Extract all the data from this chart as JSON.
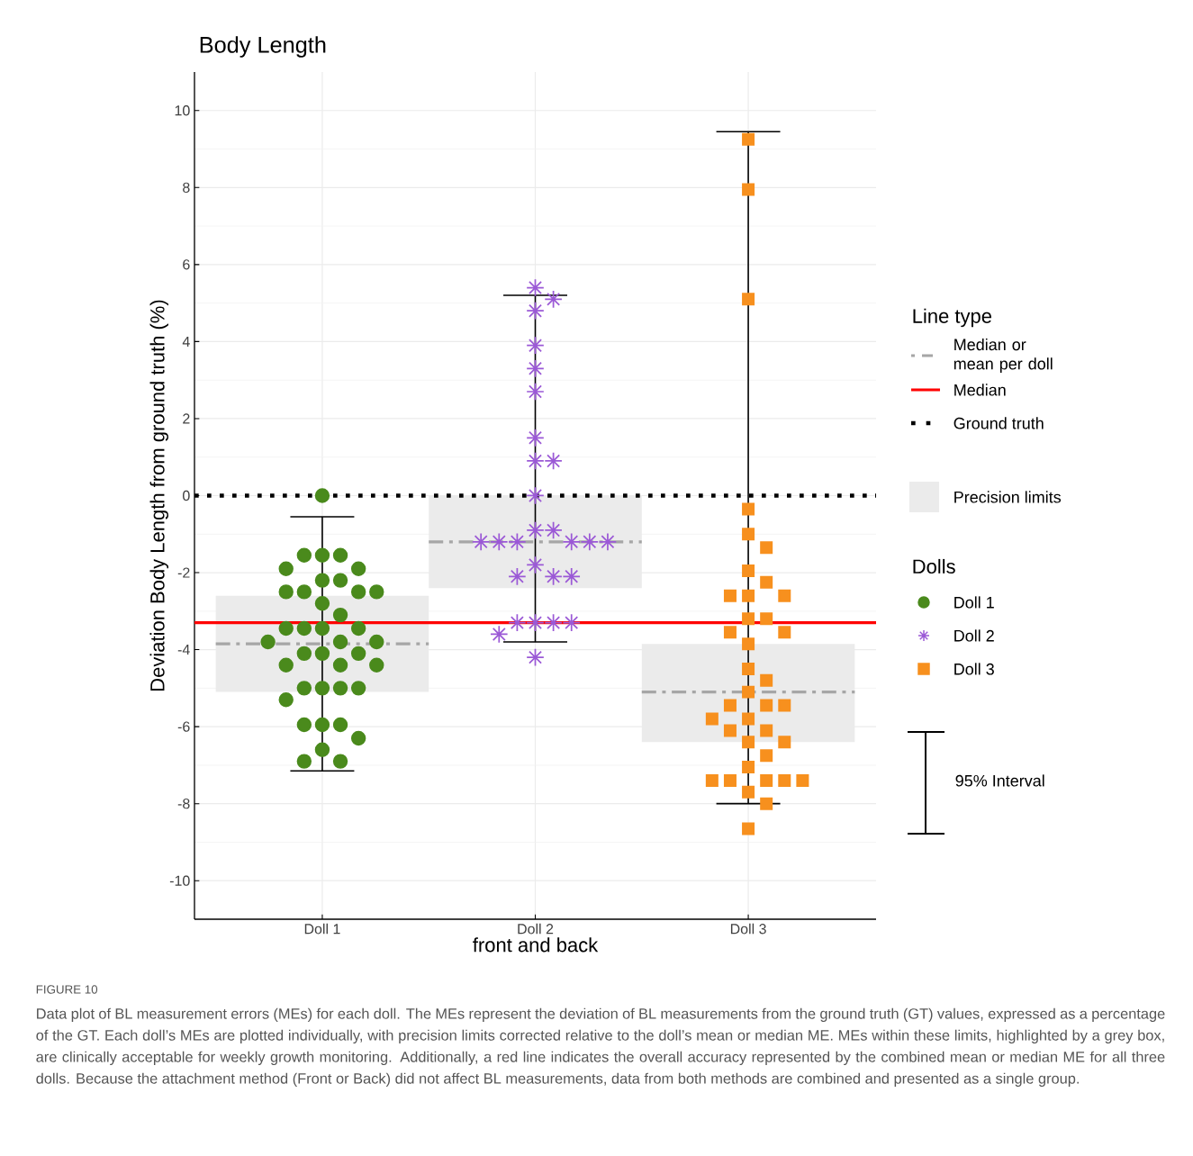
{
  "chart_data": {
    "type": "scatter",
    "title": "Body Length",
    "xlabel": "front and back",
    "ylabel": "Deviation Body Length from ground truth (%)",
    "categories": [
      "Doll 1",
      "Doll 2",
      "Doll 3"
    ],
    "ylim": [
      -11,
      11
    ],
    "yticks": [
      -10,
      -8,
      -6,
      -4,
      -2,
      0,
      2,
      4,
      6,
      8,
      10
    ],
    "grid": true,
    "legend": "right",
    "legend_title": "Line type",
    "series": [
      {
        "name": "Precision limits",
        "type": "box",
        "color": "#ebebeb",
        "boxes": [
          {
            "low": -7.15,
            "q1": -5.1,
            "median": -3.85,
            "q3": -2.6,
            "high": -0.55
          },
          {
            "low": -3.8,
            "q1": -2.4,
            "median": -1.2,
            "q3": 0,
            "high": 5.2
          },
          {
            "low": -8.0,
            "q1": -6.4,
            "median": -5.1,
            "q3": -3.85,
            "high": 9.45
          }
        ]
      },
      {
        "name": "Doll 1",
        "type": "scatter",
        "marker": "circle",
        "color": "#4a8a1c",
        "x": [
          "Doll 1",
          "Doll 1",
          "Doll 1",
          "Doll 1",
          "Doll 1",
          "Doll 1",
          "Doll 1",
          "Doll 1",
          "Doll 1",
          "Doll 1",
          "Doll 1",
          "Doll 1",
          "Doll 1",
          "Doll 1",
          "Doll 1",
          "Doll 1",
          "Doll 1",
          "Doll 1",
          "Doll 1",
          "Doll 1",
          "Doll 1",
          "Doll 1",
          "Doll 1",
          "Doll 1",
          "Doll 1",
          "Doll 1",
          "Doll 1",
          "Doll 1",
          "Doll 1",
          "Doll 1",
          "Doll 1",
          "Doll 1",
          "Doll 1",
          "Doll 1",
          "Doll 1",
          "Doll 1",
          "Doll 1",
          "Doll 1",
          "Doll 1"
        ],
        "values": [
          0,
          -1.55,
          -1.55,
          -1.55,
          -1.9,
          -1.9,
          -2.2,
          -2.2,
          -2.5,
          -2.5,
          -2.5,
          -2.5,
          -2.8,
          -3.1,
          -3.45,
          -3.45,
          -3.45,
          -3.45,
          -3.8,
          -3.8,
          -3.8,
          -4.1,
          -4.1,
          -4.1,
          -4.4,
          -4.4,
          -4.4,
          -5.0,
          -5.0,
          -5.0,
          -5.0,
          -5.3,
          -5.95,
          -5.95,
          -5.95,
          -6.3,
          -6.6,
          -6.9,
          -6.9
        ]
      },
      {
        "name": "Doll 2",
        "type": "scatter",
        "marker": "cross",
        "color": "#9b59d6",
        "x": [
          "Doll 2",
          "Doll 2",
          "Doll 2",
          "Doll 2",
          "Doll 2",
          "Doll 2",
          "Doll 2",
          "Doll 2",
          "Doll 2",
          "Doll 2",
          "Doll 2",
          "Doll 2",
          "Doll 2",
          "Doll 2",
          "Doll 2",
          "Doll 2",
          "Doll 2",
          "Doll 2",
          "Doll 2",
          "Doll 2",
          "Doll 2",
          "Doll 2",
          "Doll 2",
          "Doll 2",
          "Doll 2",
          "Doll 2",
          "Doll 2",
          "Doll 2"
        ],
        "values": [
          5.4,
          5.1,
          4.8,
          3.9,
          3.3,
          2.7,
          1.5,
          0.9,
          0.9,
          0,
          -0.9,
          -0.9,
          -1.2,
          -1.2,
          -1.2,
          -1.2,
          -1.2,
          -1.2,
          -1.8,
          -2.1,
          -2.1,
          -2.1,
          -3.3,
          -3.3,
          -3.3,
          -3.3,
          -3.6,
          -4.2
        ]
      },
      {
        "name": "Doll 3",
        "type": "scatter",
        "marker": "square",
        "color": "#f7901e",
        "x": [
          "Doll 3",
          "Doll 3",
          "Doll 3",
          "Doll 3",
          "Doll 3",
          "Doll 3",
          "Doll 3",
          "Doll 3",
          "Doll 3",
          "Doll 3",
          "Doll 3",
          "Doll 3",
          "Doll 3",
          "Doll 3",
          "Doll 3",
          "Doll 3",
          "Doll 3",
          "Doll 3",
          "Doll 3",
          "Doll 3",
          "Doll 3",
          "Doll 3",
          "Doll 3",
          "Doll 3",
          "Doll 3",
          "Doll 3",
          "Doll 3",
          "Doll 3",
          "Doll 3",
          "Doll 3",
          "Doll 3",
          "Doll 3",
          "Doll 3",
          "Doll 3",
          "Doll 3",
          "Doll 3",
          "Doll 3",
          "Doll 3"
        ],
        "values": [
          9.25,
          7.95,
          5.1,
          -0.35,
          -1.0,
          -1.35,
          -1.95,
          -2.25,
          -2.6,
          -2.6,
          -2.6,
          -3.2,
          -3.2,
          -3.55,
          -3.55,
          -3.85,
          -4.5,
          -4.8,
          -5.1,
          -5.45,
          -5.45,
          -5.45,
          -5.8,
          -5.8,
          -6.1,
          -6.1,
          -6.4,
          -6.4,
          -6.75,
          -7.05,
          -7.4,
          -7.4,
          -7.4,
          -7.4,
          -7.4,
          -7.7,
          -8.0,
          -8.65
        ]
      }
    ],
    "ref_lines": [
      {
        "axis": "y",
        "value": -3.3,
        "label": "Median",
        "color": "#ff0000",
        "line_style": "solid"
      },
      {
        "axis": "y",
        "value": 0,
        "label": "Ground truth",
        "color": "#000000",
        "line_style": "dotted"
      }
    ],
    "annotations": [
      "Median or mean per doll",
      "Dolls",
      "95% Interval",
      "FIGURE 10",
      "Data plot of BL measurement errors (MEs) for each doll. The MEs represent the deviation of BL measurements from the ground truth (GT) values, expressed as a percentage of the GT. Each doll’s MEs are plotted individually, with precision limits corrected relative to the doll’s mean or median ME. MEs within these limits, highlighted by a grey box, are clinically acceptable for weekly growth monitoring. Additionally, a red line indicates the overall accuracy represented by the combined mean or median ME for all three dolls. Because the attachment method (Front or Back) did not affect BL measurements, data from both methods are combined and presented as a single group."
    ]
  }
}
